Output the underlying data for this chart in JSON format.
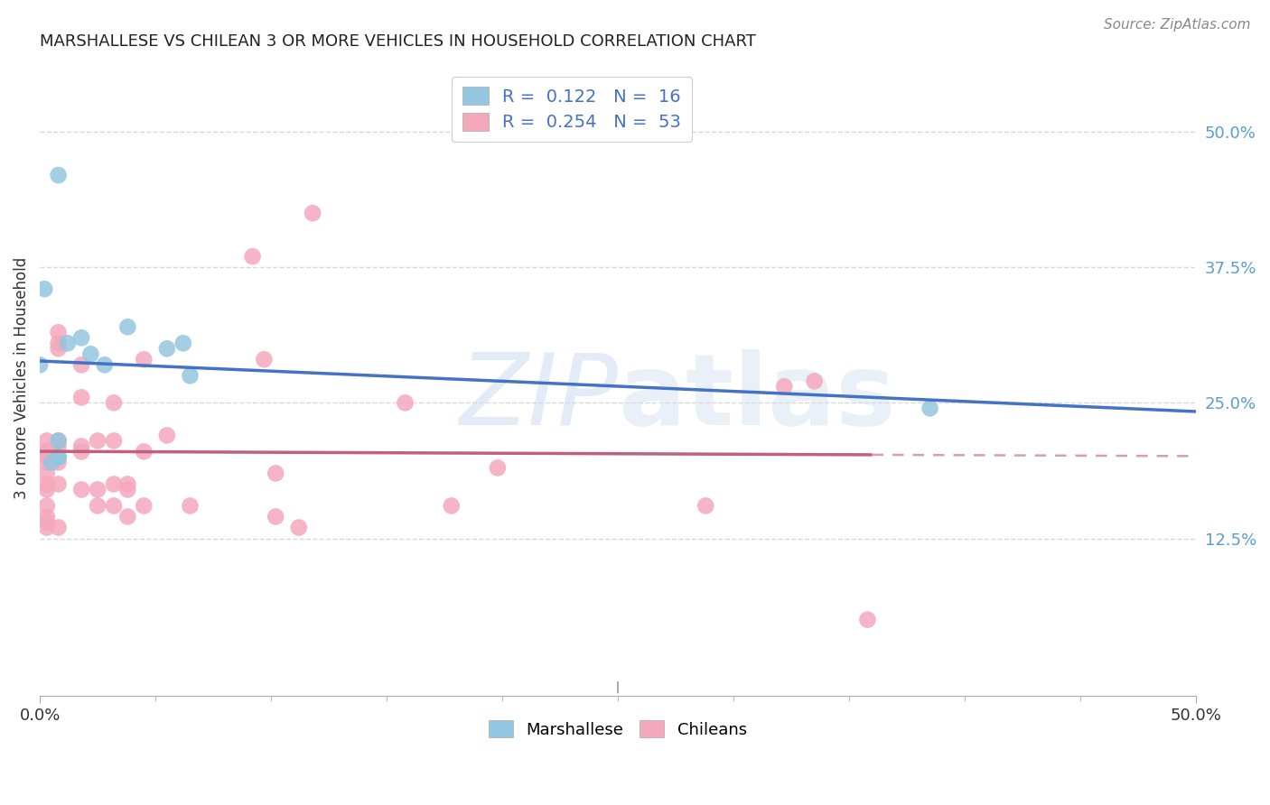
{
  "title": "MARSHALLESE VS CHILEAN 3 OR MORE VEHICLES IN HOUSEHOLD CORRELATION CHART",
  "source": "Source: ZipAtlas.com",
  "ylabel": "3 or more Vehicles in Household",
  "xlim": [
    0.0,
    0.5
  ],
  "ylim": [
    0.0,
    0.55
  ],
  "marshallese_x": [
    0.008,
    0.002,
    0.0,
    0.038,
    0.012,
    0.018,
    0.022,
    0.028,
    0.055,
    0.062,
    0.065,
    0.008,
    0.008,
    0.008,
    0.385,
    0.005
  ],
  "marshallese_y": [
    0.46,
    0.355,
    0.285,
    0.32,
    0.305,
    0.31,
    0.295,
    0.285,
    0.3,
    0.305,
    0.275,
    0.215,
    0.2,
    0.2,
    0.245,
    0.195
  ],
  "chilean_x": [
    0.003,
    0.003,
    0.003,
    0.003,
    0.003,
    0.003,
    0.003,
    0.003,
    0.003,
    0.003,
    0.003,
    0.003,
    0.008,
    0.008,
    0.008,
    0.008,
    0.008,
    0.008,
    0.008,
    0.008,
    0.018,
    0.018,
    0.018,
    0.018,
    0.018,
    0.025,
    0.025,
    0.025,
    0.032,
    0.032,
    0.032,
    0.032,
    0.038,
    0.038,
    0.038,
    0.045,
    0.045,
    0.045,
    0.055,
    0.065,
    0.092,
    0.097,
    0.102,
    0.102,
    0.112,
    0.118,
    0.158,
    0.178,
    0.198,
    0.288,
    0.322,
    0.335,
    0.358
  ],
  "chilean_y": [
    0.215,
    0.205,
    0.205,
    0.2,
    0.195,
    0.185,
    0.175,
    0.17,
    0.155,
    0.145,
    0.14,
    0.135,
    0.315,
    0.305,
    0.3,
    0.215,
    0.21,
    0.195,
    0.175,
    0.135,
    0.285,
    0.255,
    0.21,
    0.205,
    0.17,
    0.215,
    0.17,
    0.155,
    0.25,
    0.215,
    0.175,
    0.155,
    0.175,
    0.17,
    0.145,
    0.29,
    0.205,
    0.155,
    0.22,
    0.155,
    0.385,
    0.29,
    0.185,
    0.145,
    0.135,
    0.425,
    0.25,
    0.155,
    0.19,
    0.155,
    0.265,
    0.27,
    0.05
  ],
  "marshallese_color": "#93c6e0",
  "chilean_color": "#f5a8bc",
  "marshallese_line_color": "#4472c4",
  "chilean_line_color": "#c0607a",
  "dashed_line_color": "#d4a0b0",
  "watermark_color": "#d0dff0",
  "background_color": "#ffffff",
  "grid_color": "#d8d8d8"
}
